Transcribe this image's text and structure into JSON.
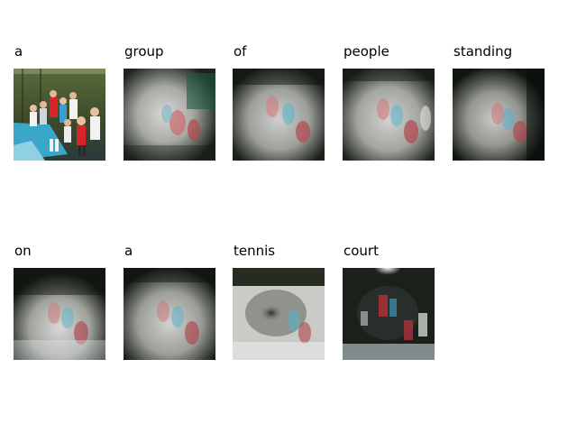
{
  "caption_words": [
    "a",
    "group",
    "of",
    "people",
    "standing",
    "on",
    "a",
    "tennis",
    "court"
  ],
  "colors": {
    "photo_bg": "#3f4a2a",
    "court": "#3aa7c9",
    "shirt_red": "#d8232a",
    "shirt_white": "#f2f2f2",
    "overlay_dark": "#0b0f0c"
  },
  "cells": [
    {
      "word": "a",
      "image": "original-photo"
    },
    {
      "word": "group",
      "image": "attention-map"
    },
    {
      "word": "of",
      "image": "attention-map"
    },
    {
      "word": "people",
      "image": "attention-map"
    },
    {
      "word": "standing",
      "image": "attention-map"
    },
    {
      "word": "on",
      "image": "attention-map"
    },
    {
      "word": "a",
      "image": "attention-map"
    },
    {
      "word": "tennis",
      "image": "attention-map"
    },
    {
      "word": "court",
      "image": "attention-map"
    }
  ]
}
